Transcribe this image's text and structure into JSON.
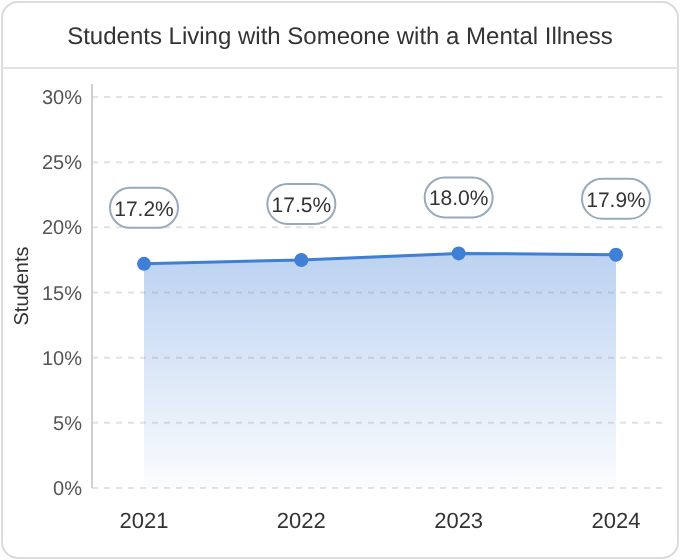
{
  "chart_data": {
    "type": "area",
    "title": "Students Living with Someone with a Mental Illness",
    "ylabel": "Students",
    "categories": [
      "2021",
      "2022",
      "2023",
      "2024"
    ],
    "values": [
      17.2,
      17.5,
      18.0,
      17.9
    ],
    "value_labels": [
      "17.2%",
      "17.5%",
      "18.0%",
      "17.9%"
    ],
    "color": "#3f7fd6",
    "marker": "circle",
    "grid": "y",
    "ylim": [
      0,
      31
    ],
    "yticks": [
      {
        "value": 0,
        "label": "0%"
      },
      {
        "value": 5,
        "label": "5%"
      },
      {
        "value": 10,
        "label": "10%"
      },
      {
        "value": 15,
        "label": "15%"
      },
      {
        "value": 20,
        "label": "20%"
      },
      {
        "value": 25,
        "label": "25%"
      },
      {
        "value": 30,
        "label": "30%"
      }
    ]
  }
}
